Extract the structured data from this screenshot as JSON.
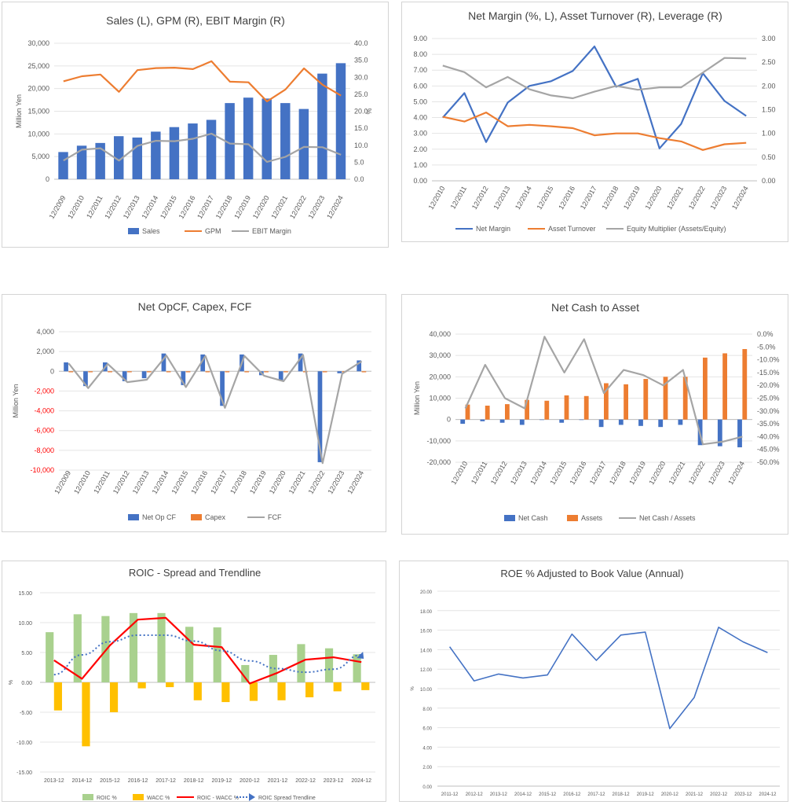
{
  "chart_data": [
    {
      "type": "bar",
      "title": "Sales (L), GPM (R), EBIT Margin (R)",
      "ylabel": "Million Yen",
      "y2label": "%",
      "ylim": [
        0,
        30000
      ],
      "y2lim": [
        0,
        40
      ],
      "yticks": [
        "0",
        "5,000",
        "10,000",
        "15,000",
        "20,000",
        "25,000",
        "30,000"
      ],
      "y2ticks": [
        "0.0",
        "5.0",
        "10.0",
        "15.0",
        "20.0",
        "25.0",
        "30.0",
        "35.0",
        "40.0"
      ],
      "categories": [
        "12/2009",
        "12/2010",
        "12/2011",
        "12/2012",
        "12/2013",
        "12/2014",
        "12/2015",
        "12/2016",
        "12/2017",
        "12/2018",
        "12/2019",
        "12/2020",
        "12/2021",
        "12/2022",
        "12/2023",
        "12/2024"
      ],
      "series": [
        {
          "name": "Sales",
          "kind": "bar",
          "axis": "left",
          "color": "#4472c4",
          "values": [
            6000,
            7400,
            8000,
            9500,
            9200,
            10500,
            11500,
            12300,
            13100,
            16800,
            18000,
            17800,
            16800,
            15500,
            23300,
            25600
          ]
        },
        {
          "name": "GPM",
          "kind": "line",
          "axis": "right",
          "color": "#ed7d31",
          "values": [
            28.8,
            30.3,
            30.8,
            25.7,
            32.1,
            32.7,
            32.8,
            32.4,
            34.7,
            28.7,
            28.5,
            22.9,
            26.4,
            32.6,
            27.8,
            24.6
          ]
        },
        {
          "name": "EBIT Margin",
          "kind": "line",
          "axis": "right",
          "color": "#a5a5a5",
          "values": [
            5.5,
            8.7,
            9.1,
            5.5,
            9.8,
            11.3,
            11.2,
            11.9,
            13.4,
            10.5,
            10.3,
            5.1,
            6.6,
            9.5,
            9.4,
            7.2
          ]
        }
      ],
      "legend_position": "bottom"
    },
    {
      "type": "line",
      "title": "Net Margin (%, L), Asset Turnover (R), Leverage (R)",
      "ylim": [
        0,
        9
      ],
      "y2lim": [
        0,
        3
      ],
      "yticks": [
        "0.00",
        "1.00",
        "2.00",
        "3.00",
        "4.00",
        "5.00",
        "6.00",
        "7.00",
        "8.00",
        "9.00"
      ],
      "y2ticks": [
        "0.00",
        "0.50",
        "1.00",
        "1.50",
        "2.00",
        "2.50",
        "3.00"
      ],
      "categories": [
        "12/2010",
        "12/2011",
        "12/2012",
        "12/2013",
        "12/2014",
        "12/2015",
        "12/2016",
        "12/2017",
        "12/2018",
        "12/2019",
        "12/2020",
        "12/2021",
        "12/2022",
        "12/2023",
        "12/2024"
      ],
      "series": [
        {
          "name": "Net Margin",
          "axis": "left",
          "color": "#4472c4",
          "values": [
            4.0,
            5.55,
            2.45,
            4.95,
            6.0,
            6.3,
            6.95,
            8.5,
            5.95,
            6.45,
            2.05,
            3.6,
            6.8,
            5.05,
            4.1
          ]
        },
        {
          "name": "Asset Turnover",
          "axis": "right",
          "color": "#ed7d31",
          "values": [
            1.35,
            1.25,
            1.44,
            1.15,
            1.18,
            1.15,
            1.11,
            0.96,
            1.0,
            1.0,
            0.9,
            0.83,
            0.65,
            0.77,
            0.8
          ]
        },
        {
          "name": "Equity Multiplier (Assets/Equity)",
          "axis": "right",
          "color": "#a5a5a5",
          "values": [
            2.43,
            2.29,
            1.97,
            2.19,
            1.93,
            1.8,
            1.74,
            1.88,
            2.0,
            1.92,
            1.97,
            1.97,
            2.28,
            2.59,
            2.58
          ]
        }
      ],
      "legend_position": "bottom"
    },
    {
      "type": "bar",
      "title": "Net OpCF, Capex, FCF",
      "ylabel": "Million Yen",
      "ylim": [
        -10000,
        4000
      ],
      "yticks": [
        "-10,000",
        "-8,000",
        "-6,000",
        "-4,000",
        "-2,000",
        "0",
        "2,000",
        "4,000"
      ],
      "categories": [
        "12/2009",
        "12/2010",
        "12/2011",
        "12/2012",
        "12/2013",
        "12/2014",
        "12/2015",
        "12/2016",
        "12/2017",
        "12/2018",
        "12/2019",
        "12/2020",
        "12/2021",
        "12/2022",
        "12/2023",
        "12/2024"
      ],
      "series": [
        {
          "name": "Net Op CF",
          "kind": "bar",
          "color": "#4472c4",
          "values": [
            900,
            -1500,
            900,
            -1000,
            -700,
            1800,
            -1400,
            1700,
            -3500,
            1700,
            -400,
            -900,
            1800,
            -9200,
            -200,
            1100
          ]
        },
        {
          "name": "Capex",
          "kind": "bar",
          "color": "#ed7d31",
          "values": [
            -100,
            -100,
            -100,
            -100,
            -100,
            -100,
            -100,
            -100,
            -100,
            -100,
            -100,
            -100,
            -100,
            -100,
            -100,
            -100
          ]
        },
        {
          "name": "FCF",
          "kind": "line",
          "color": "#a5a5a5",
          "values": [
            800,
            -1700,
            750,
            -1100,
            -850,
            1600,
            -1600,
            1550,
            -3700,
            1550,
            -450,
            -1000,
            1650,
            -9300,
            -250,
            1000
          ]
        }
      ],
      "legend_position": "bottom"
    },
    {
      "type": "bar",
      "title": "Net Cash to Asset",
      "ylabel": "Million Yen",
      "ylim": [
        -20000,
        40000
      ],
      "y2lim": [
        -50,
        0
      ],
      "yticks": [
        "-20,000",
        "-10,000",
        "0",
        "10,000",
        "20,000",
        "30,000",
        "40,000"
      ],
      "y2ticks": [
        "-50.0%",
        "-45.0%",
        "-40.0%",
        "-35.0%",
        "-30.0%",
        "-25.0%",
        "-20.0%",
        "-15.0%",
        "-10.0%",
        "-5.0%",
        "0.0%"
      ],
      "categories": [
        "12/2010",
        "12/2011",
        "12/2012",
        "12/2013",
        "12/2014",
        "12/2015",
        "12/2016",
        "12/2017",
        "12/2018",
        "12/2019",
        "12/2020",
        "12/2021",
        "12/2022",
        "12/2023",
        "12/2024"
      ],
      "series": [
        {
          "name": "Net Cash",
          "kind": "bar",
          "axis": "left",
          "color": "#4472c4",
          "values": [
            -2000,
            -800,
            -1500,
            -2500,
            0,
            -1500,
            0,
            -3500,
            -2500,
            -3000,
            -3500,
            -2500,
            -12000,
            -12500,
            -13000
          ]
        },
        {
          "name": "Assets",
          "kind": "bar",
          "axis": "left",
          "color": "#ed7d31",
          "values": [
            7000,
            6500,
            7200,
            9200,
            8800,
            11300,
            11000,
            17000,
            16500,
            19000,
            20000,
            20000,
            29000,
            31000,
            33000
          ]
        },
        {
          "name": "Net Cash / Assets",
          "kind": "line",
          "axis": "right",
          "color": "#a5a5a5",
          "values": [
            -29,
            -12,
            -25,
            -29,
            -1,
            -15,
            -2,
            -23,
            -14,
            -16,
            -20,
            -14,
            -43,
            -42,
            -40
          ]
        }
      ],
      "legend_position": "bottom"
    },
    {
      "type": "bar",
      "title": "ROIC - Spread and Trendline",
      "ylabel": "%",
      "ylim": [
        -15,
        15
      ],
      "yticks": [
        "-15.00",
        "-10.00",
        "-5.00",
        "0.00",
        "5.00",
        "10.00",
        "15.00"
      ],
      "categories": [
        "2013-12",
        "2014-12",
        "2015-12",
        "2016-12",
        "2017-12",
        "2018-12",
        "2019-12",
        "2020-12",
        "2021-12",
        "2022-12",
        "2023-12",
        "2024-12"
      ],
      "series": [
        {
          "name": "ROIC %",
          "kind": "bar",
          "color": "#a9d18e",
          "values": [
            8.4,
            11.4,
            11.1,
            11.6,
            11.6,
            9.3,
            9.2,
            2.9,
            4.6,
            6.4,
            5.7,
            4.7
          ]
        },
        {
          "name": "WACC %",
          "kind": "bar",
          "color": "#ffc000",
          "values": [
            -4.7,
            -10.7,
            -5.0,
            -1.0,
            -0.8,
            -3.0,
            -3.3,
            -3.1,
            -3.0,
            -2.5,
            -1.5,
            -1.3
          ]
        },
        {
          "name": "ROIC - WACC %",
          "kind": "line",
          "color": "#ff0000",
          "values": [
            3.7,
            0.6,
            6.2,
            10.5,
            10.8,
            6.3,
            5.9,
            -0.2,
            1.6,
            3.8,
            4.2,
            3.4
          ]
        },
        {
          "name": "ROIC Spread Trendline",
          "kind": "trend",
          "color": "#4472c4",
          "values": [
            1.3,
            4.6,
            6.8,
            7.9,
            7.9,
            6.9,
            5.3,
            3.6,
            2.3,
            1.7,
            2.2,
            4.6
          ]
        }
      ],
      "legend_position": "bottom"
    },
    {
      "type": "line",
      "title": "ROE % Adjusted to Book Value (Annual)",
      "ylabel": "%",
      "ylim": [
        0,
        20
      ],
      "yticks": [
        "0.00",
        "2.00",
        "4.00",
        "6.00",
        "8.00",
        "10.00",
        "12.00",
        "14.00",
        "16.00",
        "18.00",
        "20.00"
      ],
      "categories": [
        "2011-12",
        "2012-12",
        "2013-12",
        "2014-12",
        "2015-12",
        "2016-12",
        "2017-12",
        "2018-12",
        "2019-12",
        "2020-12",
        "2021-12",
        "2022-12",
        "2023-12",
        "2024-12"
      ],
      "series": [
        {
          "name": "ROE %",
          "color": "#4472c4",
          "values": [
            14.3,
            10.8,
            11.5,
            11.1,
            11.4,
            15.6,
            12.9,
            15.5,
            15.8,
            5.9,
            9.1,
            16.3,
            14.8,
            13.7
          ]
        }
      ]
    }
  ]
}
